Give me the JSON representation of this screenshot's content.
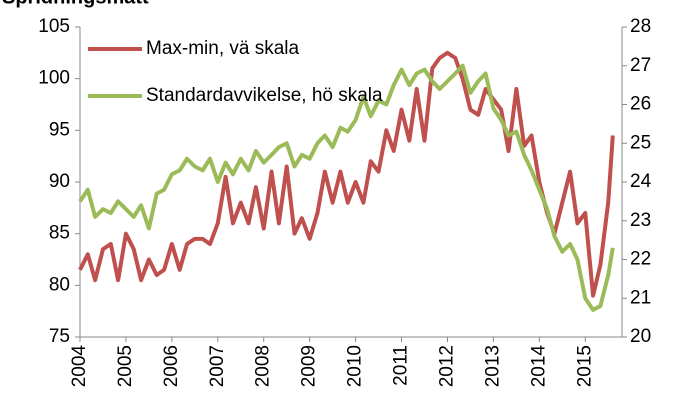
{
  "chart_data": {
    "type": "line",
    "title": "Spridningsmått",
    "x": [
      2004,
      2004.17,
      2004.33,
      2004.5,
      2004.67,
      2004.83,
      2005,
      2005.17,
      2005.33,
      2005.5,
      2005.67,
      2005.83,
      2006,
      2006.17,
      2006.33,
      2006.5,
      2006.67,
      2006.83,
      2007,
      2007.17,
      2007.33,
      2007.5,
      2007.67,
      2007.83,
      2008,
      2008.17,
      2008.33,
      2008.5,
      2008.67,
      2008.83,
      2009,
      2009.17,
      2009.33,
      2009.5,
      2009.67,
      2009.83,
      2010,
      2010.17,
      2010.33,
      2010.5,
      2010.67,
      2010.83,
      2011,
      2011.17,
      2011.33,
      2011.5,
      2011.67,
      2011.83,
      2012,
      2012.17,
      2012.33,
      2012.5,
      2012.67,
      2012.83,
      2013,
      2013.17,
      2013.33,
      2013.5,
      2013.67,
      2013.83,
      2014,
      2014.17,
      2014.33,
      2014.5,
      2014.67,
      2014.83,
      2015,
      2015.17,
      2015.33,
      2015.5,
      2015.6
    ],
    "xlim": [
      2004,
      2015.8
    ],
    "xticks": [
      2004,
      2005,
      2006,
      2007,
      2008,
      2009,
      2010,
      2011,
      2012,
      2013,
      2014,
      2015
    ],
    "ylim": [
      75,
      105
    ],
    "yticks": [
      75,
      80,
      85,
      90,
      95,
      100,
      105
    ],
    "y2lim": [
      20,
      28
    ],
    "y2ticks": [
      20,
      21,
      22,
      23,
      24,
      25,
      26,
      27,
      28
    ],
    "legend": "upper left",
    "series": [
      {
        "name": "Max-min, vä skala",
        "color": "#c0504d",
        "axis": "y",
        "values": [
          81.5,
          83,
          80.5,
          83.5,
          84,
          80.5,
          85,
          83.5,
          80.5,
          82.5,
          81,
          81.5,
          84,
          81.5,
          84,
          84.5,
          84.5,
          84,
          86,
          90.5,
          86,
          88,
          86,
          89.5,
          85.5,
          91,
          86,
          91.5,
          85,
          86.5,
          84.5,
          87,
          91,
          88,
          91,
          88,
          90,
          88,
          92,
          91,
          95,
          93,
          97,
          94,
          99,
          94,
          101,
          102,
          102.5,
          102,
          100,
          97,
          96.5,
          99,
          98,
          97,
          93,
          99,
          93.5,
          94.5,
          90,
          87,
          85,
          88,
          91,
          86,
          87,
          79,
          82,
          88,
          94.5
        ]
      },
      {
        "name": "Standardavvikelse, hö skala",
        "color": "#9bbb59",
        "axis": "y2",
        "values": [
          23.5,
          23.8,
          23.1,
          23.3,
          23.2,
          23.5,
          23.3,
          23.1,
          23.4,
          22.8,
          23.7,
          23.8,
          24.2,
          24.3,
          24.6,
          24.4,
          24.3,
          24.6,
          24.0,
          24.5,
          24.2,
          24.6,
          24.3,
          24.8,
          24.5,
          24.7,
          24.9,
          25.0,
          24.4,
          24.7,
          24.6,
          25.0,
          25.2,
          24.9,
          25.4,
          25.3,
          25.6,
          26.2,
          25.7,
          26.1,
          26.0,
          26.5,
          26.9,
          26.5,
          26.8,
          26.9,
          26.6,
          26.4,
          26.6,
          26.8,
          27.0,
          26.3,
          26.6,
          26.8,
          25.9,
          25.6,
          25.2,
          25.3,
          24.7,
          24.3,
          23.8,
          23.3,
          22.6,
          22.2,
          22.4,
          22.0,
          21.0,
          20.7,
          20.8,
          21.6,
          22.3
        ]
      }
    ]
  }
}
